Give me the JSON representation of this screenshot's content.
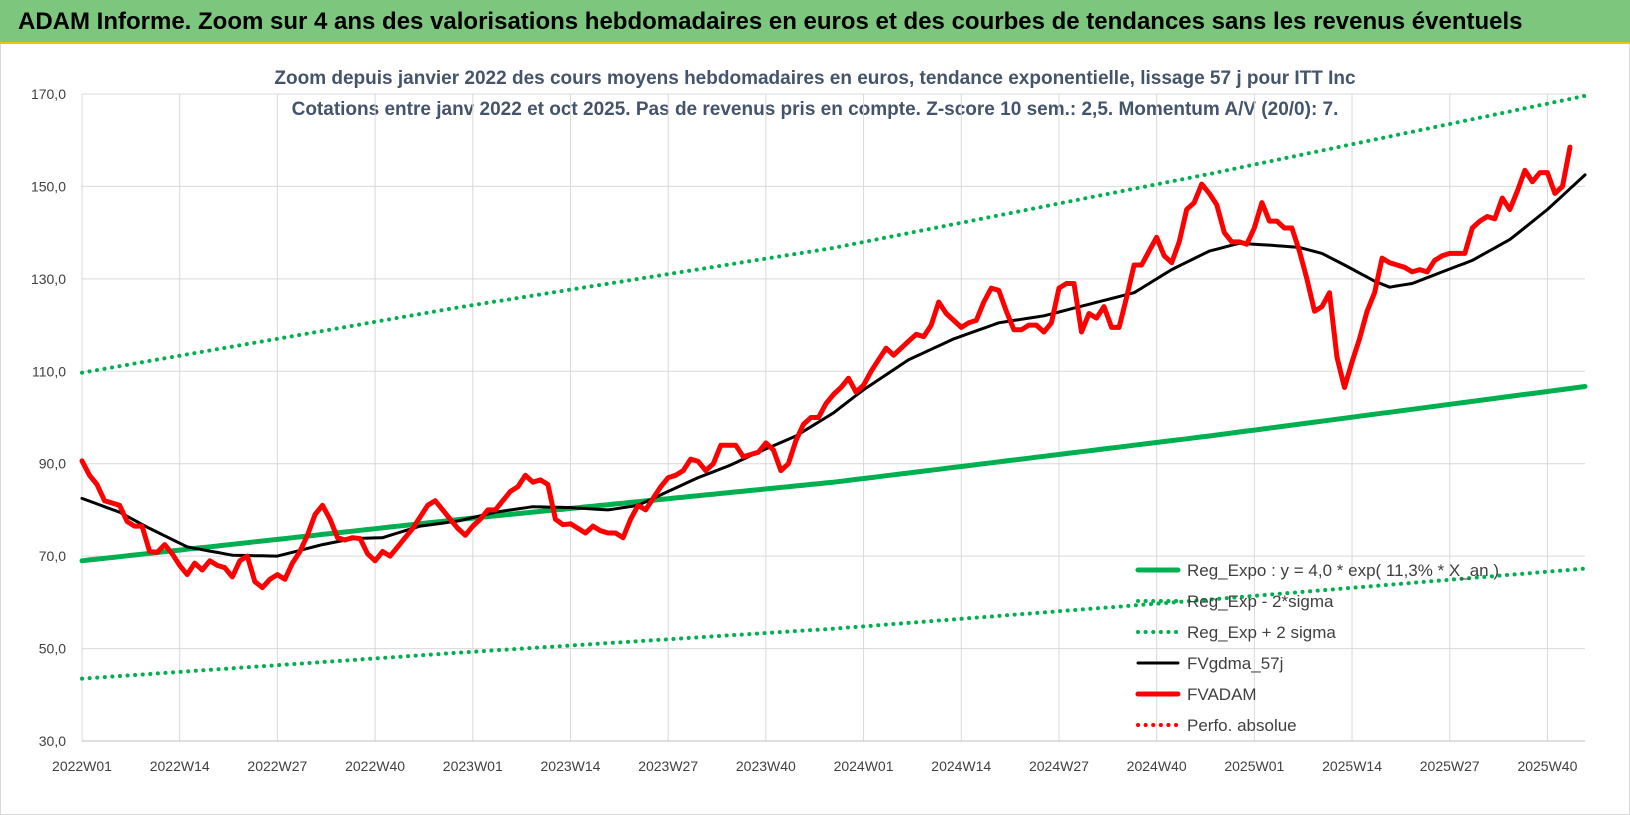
{
  "header": {
    "title": "ADAM Informe. Zoom sur 4 ans des valorisations hebdomadaires en euros et des courbes de tendances sans les revenus éventuels"
  },
  "chart_data": {
    "type": "line",
    "title": "Zoom depuis janvier 2022 des cours moyens hebdomadaires en euros, tendance exponentielle, lissage 57 j pour ITT Inc",
    "subtitle": "Cotations entre janv 2022 et oct 2025. Pas de revenus pris en compte. Z-score 10 sem.: 2,5. Momentum A/V (20/0): 7.",
    "ylim": [
      30,
      170
    ],
    "yticks": [
      "30,0",
      "50,0",
      "70,0",
      "90,0",
      "110,0",
      "130,0",
      "150,0",
      "170,0"
    ],
    "ytick_values": [
      30,
      50,
      70,
      90,
      110,
      130,
      150,
      170
    ],
    "xticks": [
      "2022W01",
      "2022W14",
      "2022W27",
      "2022W40",
      "2023W01",
      "2023W14",
      "2023W27",
      "2023W40",
      "2024W01",
      "2024W14",
      "2024W27",
      "2024W40",
      "2025W01",
      "2025W14",
      "2025W27",
      "2025W40"
    ],
    "xtick_index": [
      0,
      13,
      26,
      39,
      52,
      65,
      78,
      91,
      104,
      117,
      130,
      143,
      156,
      169,
      182,
      195
    ],
    "n_weeks": 201,
    "grid": true,
    "legend_position": "bottom-right",
    "colors": {
      "trend": "#00b050",
      "gdma": "#000000",
      "price": "#ff0000",
      "perfo": "#ff0000"
    },
    "series": [
      {
        "name": "Reg_Expo : y = 4,0 * exp( 11,3% * X_an )",
        "style": "solid-thick",
        "color": "#00b050",
        "anchors": [
          [
            0,
            69.0
          ],
          [
            50,
            77.9
          ],
          [
            100,
            86.0
          ],
          [
            150,
            96.0
          ],
          [
            200,
            106.7
          ]
        ]
      },
      {
        "name": "Reg_Exp - 2*sigma",
        "style": "dotted",
        "color": "#00b050",
        "anchors": [
          [
            0,
            43.5
          ],
          [
            50,
            49.1
          ],
          [
            100,
            54.3
          ],
          [
            150,
            60.6
          ],
          [
            200,
            67.3
          ]
        ]
      },
      {
        "name": "Reg_Exp + 2 sigma",
        "style": "dotted",
        "color": "#00b050",
        "anchors": [
          [
            0,
            109.7
          ],
          [
            50,
            123.8
          ],
          [
            100,
            136.7
          ],
          [
            150,
            152.7
          ],
          [
            200,
            169.6
          ]
        ]
      },
      {
        "name": "FVgdma_57j",
        "style": "solid",
        "color": "#000000",
        "anchors": [
          [
            0,
            82.5
          ],
          [
            5,
            79.5
          ],
          [
            9,
            76.0
          ],
          [
            14,
            72.0
          ],
          [
            20,
            70.2
          ],
          [
            26,
            70.0
          ],
          [
            32,
            72.5
          ],
          [
            36,
            73.8
          ],
          [
            40,
            74.0
          ],
          [
            45,
            76.5
          ],
          [
            50,
            77.6
          ],
          [
            55,
            79.5
          ],
          [
            60,
            80.7
          ],
          [
            65,
            80.5
          ],
          [
            70,
            80.0
          ],
          [
            74,
            81.0
          ],
          [
            78,
            84.0
          ],
          [
            82,
            87.0
          ],
          [
            86,
            89.5
          ],
          [
            90,
            92.5
          ],
          [
            95,
            96.0
          ],
          [
            100,
            101.0
          ],
          [
            104,
            106.0
          ],
          [
            110,
            112.5
          ],
          [
            116,
            117.0
          ],
          [
            122,
            120.5
          ],
          [
            128,
            122.0
          ],
          [
            134,
            124.5
          ],
          [
            140,
            127.0
          ],
          [
            145,
            132.0
          ],
          [
            150,
            136.0
          ],
          [
            154,
            137.7
          ],
          [
            158,
            137.3
          ],
          [
            162,
            136.8
          ],
          [
            165,
            135.5
          ],
          [
            168,
            133.0
          ],
          [
            172,
            129.5
          ],
          [
            174,
            128.2
          ],
          [
            177,
            129.0
          ],
          [
            181,
            131.5
          ],
          [
            185,
            134.0
          ],
          [
            190,
            138.5
          ],
          [
            195,
            145.0
          ],
          [
            200,
            152.5
          ]
        ]
      },
      {
        "name": "FVADAM",
        "style": "solid-thick",
        "color": "#ff0000",
        "values": [
          90.6,
          87.5,
          85.5,
          82.0,
          81.5,
          81.0,
          77.5,
          76.5,
          76.5,
          71.0,
          70.8,
          72.5,
          70.5,
          68.0,
          66.0,
          68.5,
          67.0,
          69.0,
          68.0,
          67.5,
          65.5,
          69.0,
          70.0,
          64.5,
          63.2,
          65.0,
          66.0,
          65.0,
          68.5,
          71.0,
          74.5,
          79.0,
          81.0,
          78.0,
          74.0,
          73.5,
          74.0,
          73.8,
          70.5,
          69.0,
          71.0,
          70.0,
          72.0,
          74.0,
          76.0,
          78.5,
          81.0,
          82.0,
          80.0,
          78.0,
          76.0,
          74.5,
          76.5,
          78.0,
          80.0,
          80.0,
          82.0,
          84.0,
          85.0,
          87.5,
          86.0,
          86.5,
          85.5,
          78.0,
          76.8,
          77.0,
          76.0,
          75.0,
          76.5,
          75.5,
          75.0,
          75.0,
          74.0,
          78.0,
          81.0,
          80.0,
          82.5,
          85.0,
          87.0,
          87.5,
          88.5,
          91.0,
          90.5,
          88.5,
          90.0,
          94.0,
          94.0,
          94.0,
          91.5,
          92.0,
          92.5,
          94.5,
          93.0,
          88.5,
          90.0,
          95.0,
          98.5,
          100.0,
          100.0,
          103.0,
          105.0,
          106.5,
          108.5,
          105.5,
          107.0,
          110.0,
          112.5,
          115.0,
          113.5,
          115.0,
          116.5,
          118.0,
          117.5,
          120.0,
          125.0,
          122.5,
          121.0,
          119.5,
          120.5,
          121.0,
          125.0,
          128.0,
          127.5,
          123.0,
          119.0,
          119.0,
          120.0,
          120.0,
          118.5,
          120.5,
          128.0,
          129.0,
          129.0,
          118.5,
          122.5,
          121.5,
          124.0,
          119.5,
          119.5,
          126.0,
          133.0,
          133.0,
          136.0,
          139.0,
          135.0,
          133.5,
          138.0,
          145.0,
          146.5,
          150.5,
          148.5,
          146.0,
          140.0,
          138.0,
          138.0,
          137.5,
          141.0,
          146.5,
          142.5,
          142.5,
          141.0,
          141.0,
          136.0,
          130.0,
          123.0,
          124.0,
          127.0,
          113.0,
          106.5,
          112.0,
          117.0,
          123.0,
          127.0,
          134.5,
          133.5,
          133.0,
          132.5,
          131.5,
          132.0,
          131.5,
          134.0,
          135.0,
          135.5,
          135.5,
          135.5,
          141.0,
          142.5,
          143.5,
          143.0,
          147.5,
          145.0,
          149.0,
          153.5,
          151.0,
          153.0,
          153.0,
          148.5,
          150.0,
          158.5
        ]
      },
      {
        "name": "Perfo. absolue",
        "style": "dotted",
        "color": "#ff0000",
        "values": []
      }
    ]
  }
}
